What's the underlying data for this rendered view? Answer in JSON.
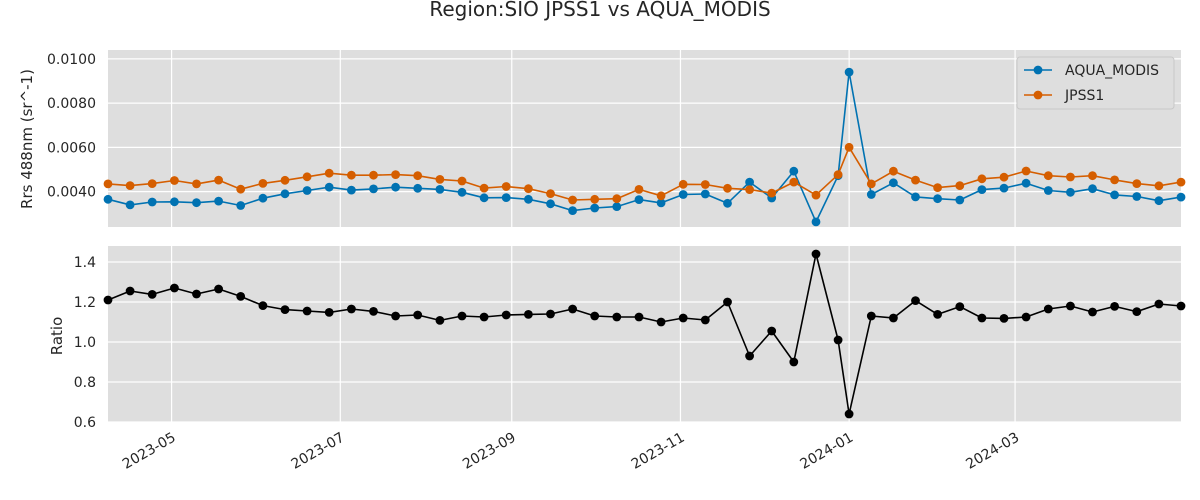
{
  "chart_data": [
    {
      "type": "line",
      "title": "Region:SIO JPSS1 vs AQUA_MODIS",
      "ylabel": "Rrs 488nm (sr^-1)",
      "ylim": [
        0.0024,
        0.0104
      ],
      "yticks": [
        "0.0040",
        "0.0060",
        "0.0080",
        "0.0100"
      ],
      "ytick_values": [
        0.004,
        0.006,
        0.008,
        0.01
      ],
      "grid": true,
      "legend_position": "top-right",
      "xlim": [
        "2023-04-08",
        "2024-04-30"
      ],
      "x": [
        "2023-04-08",
        "2023-04-16",
        "2023-04-24",
        "2023-05-02",
        "2023-05-10",
        "2023-05-18",
        "2023-05-26",
        "2023-06-03",
        "2023-06-11",
        "2023-06-19",
        "2023-06-27",
        "2023-07-05",
        "2023-07-13",
        "2023-07-21",
        "2023-07-29",
        "2023-08-06",
        "2023-08-14",
        "2023-08-22",
        "2023-08-30",
        "2023-09-07",
        "2023-09-15",
        "2023-09-23",
        "2023-10-01",
        "2023-10-09",
        "2023-10-17",
        "2023-10-25",
        "2023-11-02",
        "2023-11-10",
        "2023-11-18",
        "2023-11-26",
        "2023-12-04",
        "2023-12-12",
        "2023-12-20",
        "2023-12-28",
        "2024-01-01",
        "2024-01-09",
        "2024-01-17",
        "2024-01-25",
        "2024-02-02",
        "2024-02-10",
        "2024-02-18",
        "2024-02-26",
        "2024-03-05",
        "2024-03-13",
        "2024-03-21",
        "2024-03-29",
        "2024-04-06",
        "2024-04-14",
        "2024-04-22",
        "2024-04-30"
      ],
      "series": [
        {
          "name": "AQUA_MODIS",
          "color": "#0072b2",
          "values": [
            0.00365,
            0.0034,
            0.00353,
            0.00354,
            0.0035,
            0.00357,
            0.00337,
            0.0037,
            0.0039,
            0.00405,
            0.0042,
            0.00407,
            0.00412,
            0.0042,
            0.00415,
            0.0041,
            0.00397,
            0.00372,
            0.00373,
            0.00365,
            0.00345,
            0.00314,
            0.00326,
            0.00332,
            0.00364,
            0.00349,
            0.00387,
            0.00389,
            0.00347,
            0.00443,
            0.00371,
            0.00492,
            0.00263,
            0.00472,
            0.0094,
            0.00387,
            0.0044,
            0.00376,
            0.00368,
            0.00362,
            0.00409,
            0.00416,
            0.00438,
            0.00405,
            0.00397,
            0.00413,
            0.00385,
            0.00378,
            0.00359,
            0.00375
          ]
        },
        {
          "name": "JPSS1",
          "color": "#d55e00",
          "values": [
            0.00435,
            0.00427,
            0.00436,
            0.0045,
            0.00435,
            0.00452,
            0.00411,
            0.00437,
            0.00451,
            0.00467,
            0.00483,
            0.00474,
            0.00474,
            0.00477,
            0.00472,
            0.00455,
            0.00448,
            0.00416,
            0.00423,
            0.00413,
            0.00391,
            0.00362,
            0.00365,
            0.00368,
            0.0041,
            0.00381,
            0.00433,
            0.00432,
            0.00415,
            0.00409,
            0.00393,
            0.00443,
            0.00384,
            0.00477,
            0.006,
            0.00435,
            0.00492,
            0.00452,
            0.00418,
            0.00427,
            0.00458,
            0.00465,
            0.00493,
            0.00472,
            0.00466,
            0.00472,
            0.00453,
            0.00436,
            0.00426,
            0.00443
          ]
        }
      ]
    },
    {
      "type": "line",
      "ylabel": "Ratio",
      "ylim": [
        0.6,
        1.48
      ],
      "yticks": [
        "0.6",
        "0.8",
        "1.0",
        "1.2",
        "1.4"
      ],
      "ytick_values": [
        0.6,
        0.8,
        1.0,
        1.2,
        1.4
      ],
      "grid": true,
      "xlim": [
        "2023-04-08",
        "2024-04-30"
      ],
      "xticks": [
        "2023-05",
        "2023-07",
        "2023-09",
        "2023-11",
        "2024-01",
        "2024-03"
      ],
      "xtick_dates": [
        "2023-05-01",
        "2023-07-01",
        "2023-09-01",
        "2023-11-01",
        "2024-01-01",
        "2024-03-01"
      ],
      "x": [
        "2023-04-08",
        "2023-04-16",
        "2023-04-24",
        "2023-05-02",
        "2023-05-10",
        "2023-05-18",
        "2023-05-26",
        "2023-06-03",
        "2023-06-11",
        "2023-06-19",
        "2023-06-27",
        "2023-07-05",
        "2023-07-13",
        "2023-07-21",
        "2023-07-29",
        "2023-08-06",
        "2023-08-14",
        "2023-08-22",
        "2023-08-30",
        "2023-09-07",
        "2023-09-15",
        "2023-09-23",
        "2023-10-01",
        "2023-10-09",
        "2023-10-17",
        "2023-10-25",
        "2023-11-02",
        "2023-11-10",
        "2023-11-18",
        "2023-11-26",
        "2023-12-04",
        "2023-12-12",
        "2023-12-20",
        "2023-12-28",
        "2024-01-01",
        "2024-01-09",
        "2024-01-17",
        "2024-01-25",
        "2024-02-02",
        "2024-02-10",
        "2024-02-18",
        "2024-02-26",
        "2024-03-05",
        "2024-03-13",
        "2024-03-21",
        "2024-03-29",
        "2024-04-06",
        "2024-04-14",
        "2024-04-22",
        "2024-04-30"
      ],
      "series": [
        {
          "color": "#000000",
          "values": [
            1.21,
            1.255,
            1.238,
            1.27,
            1.24,
            1.265,
            1.228,
            1.182,
            1.162,
            1.155,
            1.148,
            1.165,
            1.153,
            1.13,
            1.135,
            1.108,
            1.13,
            1.125,
            1.135,
            1.138,
            1.14,
            1.165,
            1.13,
            1.125,
            1.125,
            1.1,
            1.12,
            1.11,
            1.2,
            0.93,
            1.055,
            0.9,
            1.44,
            1.01,
            0.64,
            1.13,
            1.12,
            1.207,
            1.138,
            1.177,
            1.12,
            1.118,
            1.125,
            1.165,
            1.18,
            1.15,
            1.178,
            1.152,
            1.19,
            1.18
          ]
        }
      ]
    }
  ]
}
